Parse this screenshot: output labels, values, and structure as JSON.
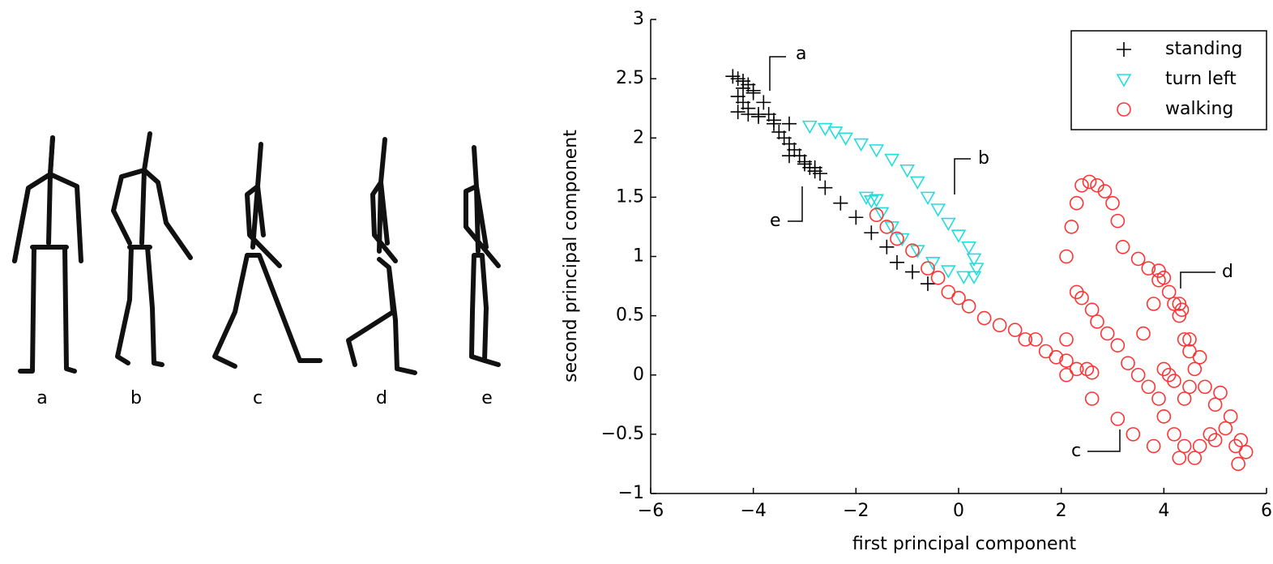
{
  "figures": {
    "labels": [
      "a",
      "b",
      "c",
      "d",
      "e"
    ]
  },
  "chart_data": {
    "type": "scatter",
    "xlabel": "first principal component",
    "ylabel": "second principal component",
    "xlim": [
      -6,
      6
    ],
    "xticks": [
      {
        "value": -6,
        "label": "−6"
      },
      {
        "value": -4,
        "label": "−4"
      },
      {
        "value": -2,
        "label": "−2"
      },
      0,
      2,
      4,
      6
    ],
    "ylim": [
      -1,
      3
    ],
    "yticks": [
      {
        "value": -1,
        "label": "−1"
      },
      {
        "value": -0.5,
        "label": "−0.5"
      },
      0,
      0.5,
      1,
      1.5,
      2,
      2.5,
      3
    ],
    "legend": "upper right",
    "annotations": [
      "a",
      "b",
      "c",
      "d",
      "e"
    ],
    "series": [
      {
        "name": "standing",
        "color": "#000000",
        "marker": "plus",
        "x": [
          -4.4,
          -4.3,
          -4.2,
          -4.1,
          -4.0,
          -4.3,
          -4.2,
          -4.1,
          -3.9,
          -4.2,
          -4.0,
          -3.8,
          -3.7,
          -3.6,
          -3.5,
          -3.4,
          -3.3,
          -3.2,
          -3.1,
          -3.0,
          -2.9,
          -2.8,
          -2.7,
          -3.3,
          -3.0,
          -2.8,
          -4.3,
          -4.1,
          -3.9,
          -3.6,
          -3.3,
          -2.6,
          -2.3,
          -2.0,
          -1.7,
          -1.4,
          -1.2,
          -0.9,
          -0.6
        ],
        "values": [
          2.52,
          2.5,
          2.48,
          2.45,
          2.4,
          2.35,
          2.3,
          2.25,
          2.2,
          2.42,
          2.38,
          2.3,
          2.2,
          2.12,
          2.05,
          2.0,
          1.95,
          1.9,
          1.85,
          1.8,
          1.75,
          1.72,
          1.7,
          1.85,
          1.78,
          1.75,
          2.22,
          2.2,
          2.18,
          2.15,
          2.12,
          1.58,
          1.45,
          1.33,
          1.2,
          1.08,
          0.95,
          0.87,
          0.77
        ]
      },
      {
        "name": "turn left",
        "color": "#22dddd",
        "marker": "triangle-down",
        "x": [
          -2.9,
          -2.6,
          -2.4,
          -2.2,
          -1.9,
          -1.6,
          -1.3,
          -1.0,
          -0.8,
          -0.6,
          -0.4,
          -0.2,
          0.0,
          0.2,
          0.3,
          0.35,
          0.3,
          0.1,
          -0.2,
          -0.5,
          -0.8,
          -1.1,
          -1.3,
          -1.5,
          -1.7,
          -1.8,
          -1.6
        ],
        "values": [
          2.1,
          2.08,
          2.05,
          2.0,
          1.95,
          1.9,
          1.82,
          1.73,
          1.63,
          1.5,
          1.4,
          1.28,
          1.18,
          1.08,
          0.98,
          0.9,
          0.83,
          0.83,
          0.88,
          0.95,
          1.05,
          1.15,
          1.25,
          1.37,
          1.47,
          1.5,
          1.48
        ]
      },
      {
        "name": "walking",
        "color": "#ff3333",
        "marker": "circle",
        "x": [
          -1.6,
          -1.4,
          -1.2,
          -0.9,
          -0.6,
          -0.4,
          -0.2,
          0.0,
          0.2,
          0.5,
          0.8,
          1.1,
          1.3,
          1.5,
          1.7,
          1.9,
          2.1,
          2.1,
          2.3,
          2.5,
          2.6,
          2.6,
          3.1,
          2.1,
          2.1,
          2.2,
          2.3,
          2.4,
          2.55,
          2.7,
          2.85,
          3.0,
          3.1,
          3.2,
          3.5,
          3.7,
          3.9,
          4.0,
          4.1,
          4.2,
          4.3,
          4.4,
          4.5,
          4.6,
          4.8,
          5.0,
          5.2,
          5.4,
          5.45,
          5.6,
          5.3,
          5.1,
          2.3,
          2.4,
          2.6,
          2.7,
          2.9,
          3.1,
          3.3,
          3.5,
          3.7,
          3.9,
          4.0,
          4.2,
          4.4,
          4.6,
          4.7,
          4.9,
          3.6,
          3.8,
          3.9,
          4.0,
          4.1,
          4.2,
          4.3,
          4.35,
          4.5,
          4.7,
          4.5,
          4.4,
          3.4,
          3.8,
          4.3,
          5.5,
          5.0
        ],
        "values": [
          1.35,
          1.25,
          1.15,
          1.05,
          0.9,
          0.82,
          0.7,
          0.65,
          0.58,
          0.48,
          0.42,
          0.38,
          0.3,
          0.3,
          0.2,
          0.15,
          0.12,
          0.0,
          0.05,
          0.05,
          0.02,
          -0.2,
          -0.37,
          0.3,
          1.0,
          1.25,
          1.45,
          1.6,
          1.63,
          1.6,
          1.55,
          1.45,
          1.3,
          1.08,
          0.98,
          0.9,
          0.88,
          0.82,
          0.7,
          0.6,
          0.5,
          0.3,
          0.2,
          0.05,
          -0.1,
          -0.25,
          -0.45,
          -0.6,
          -0.75,
          -0.65,
          -0.35,
          -0.15,
          0.7,
          0.65,
          0.55,
          0.45,
          0.35,
          0.25,
          0.1,
          0.0,
          -0.1,
          -0.2,
          -0.35,
          -0.5,
          -0.6,
          -0.7,
          -0.6,
          -0.5,
          0.35,
          0.6,
          0.8,
          0.05,
          0.0,
          -0.05,
          0.6,
          0.55,
          0.3,
          0.15,
          -0.1,
          -0.2,
          -0.5,
          -0.6,
          -0.7,
          -0.55,
          -0.55
        ]
      }
    ]
  }
}
